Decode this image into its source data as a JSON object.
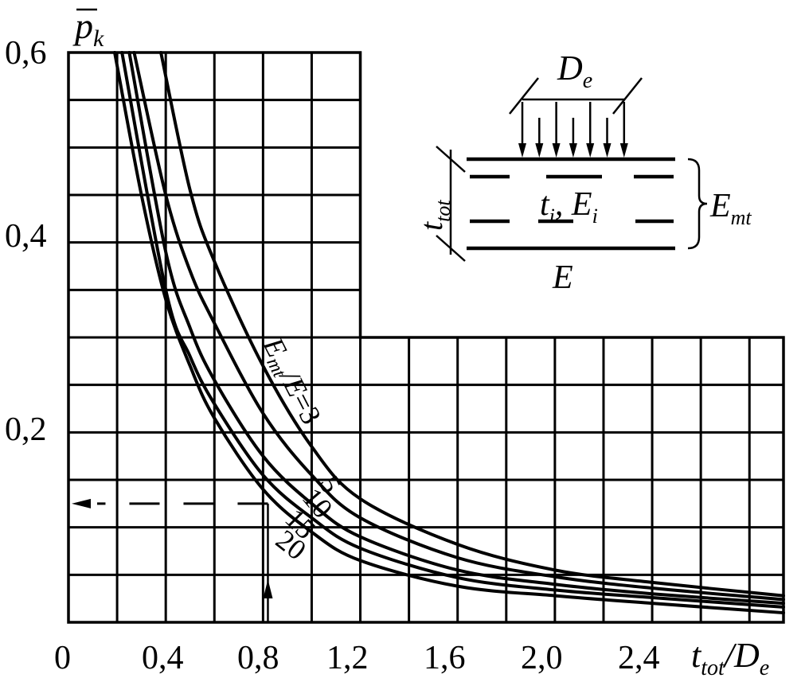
{
  "chart_data": {
    "type": "line",
    "title": "",
    "xlabel": "t_tot/D_e",
    "ylabel": "p̄_k",
    "xlim": [
      0,
      2.94
    ],
    "ylim": [
      0,
      0.6
    ],
    "grid": true,
    "x_ticks": [
      "0",
      "0,4",
      "0,8",
      "1,2",
      "1,6",
      "2,0",
      "2,4"
    ],
    "y_ticks": [
      "0,6",
      "0,4",
      "0,2"
    ],
    "series": [
      {
        "name": "3",
        "x": [
          0.38,
          0.5,
          0.6,
          0.8,
          1.0,
          1.2,
          1.6,
          2.0,
          2.4,
          2.94
        ],
        "y": [
          0.6,
          0.455,
          0.38,
          0.27,
          0.185,
          0.13,
          0.082,
          0.055,
          0.042,
          0.028
        ]
      },
      {
        "name": "5",
        "x": [
          0.27,
          0.4,
          0.5,
          0.6,
          0.8,
          1.0,
          1.2,
          1.6,
          2.0,
          2.4,
          2.94
        ],
        "y": [
          0.6,
          0.45,
          0.37,
          0.315,
          0.22,
          0.155,
          0.11,
          0.068,
          0.048,
          0.036,
          0.024
        ]
      },
      {
        "name": "10",
        "x": [
          0.25,
          0.4,
          0.5,
          0.6,
          0.8,
          1.0,
          1.2,
          1.6,
          2.0,
          2.4,
          2.94
        ],
        "y": [
          0.6,
          0.39,
          0.31,
          0.255,
          0.175,
          0.125,
          0.09,
          0.055,
          0.04,
          0.03,
          0.02
        ]
      },
      {
        "name": "15",
        "x": [
          0.22,
          0.4,
          0.5,
          0.6,
          0.8,
          1.0,
          1.2,
          1.6,
          2.0,
          2.4,
          2.94
        ],
        "y": [
          0.6,
          0.35,
          0.28,
          0.23,
          0.155,
          0.11,
          0.078,
          0.047,
          0.034,
          0.026,
          0.016
        ]
      },
      {
        "name": "20",
        "x": [
          0.19,
          0.3,
          0.4,
          0.5,
          0.6,
          0.8,
          1.0,
          1.2,
          1.6,
          2.0,
          2.4,
          2.94
        ],
        "y": [
          0.6,
          0.45,
          0.34,
          0.27,
          0.215,
          0.14,
          0.095,
          0.065,
          0.038,
          0.028,
          0.02,
          0.01
        ]
      }
    ],
    "curve_label_prefix": "E_mt/E=",
    "example_reading": {
      "x": 0.82,
      "y": 0.125
    },
    "inset": {
      "load_width_label": "D_e",
      "thickness_label": "t_tot",
      "layer_label": "t_i, E_i",
      "module_label": "E_mt",
      "base_label": "E"
    }
  }
}
